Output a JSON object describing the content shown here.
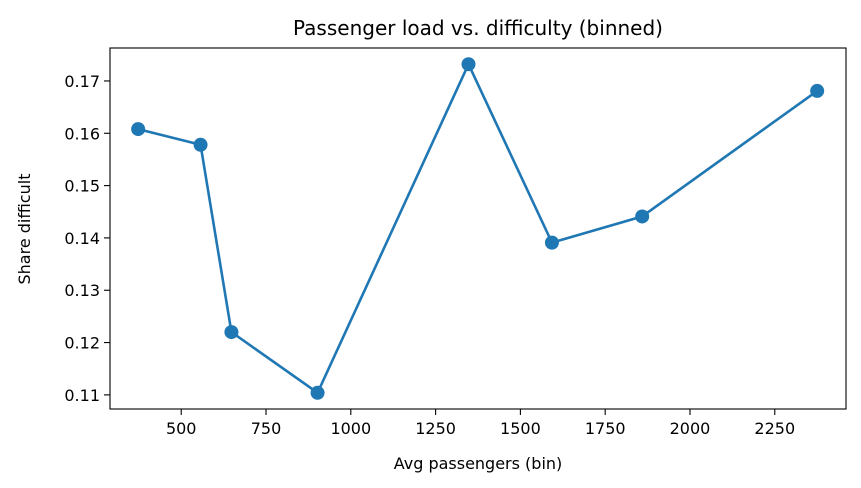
{
  "chart_data": {
    "type": "line",
    "title": "Passenger load vs. difficulty (binned)",
    "xlabel": "Avg passengers (bin)",
    "ylabel": "Share difficult",
    "xlim": [
      290,
      2460
    ],
    "ylim": [
      0.1073,
      0.1763
    ],
    "xticks": [
      500,
      750,
      1000,
      1250,
      1500,
      1750,
      2000,
      2250
    ],
    "xtick_labels": [
      "500",
      "750",
      "1000",
      "1250",
      "1500",
      "1750",
      "2000",
      "2250"
    ],
    "yticks": [
      0.11,
      0.12,
      0.13,
      0.14,
      0.15,
      0.16,
      0.17
    ],
    "ytick_labels": [
      "0.11",
      "0.12",
      "0.13",
      "0.14",
      "0.15",
      "0.16",
      "0.17"
    ],
    "grid": false,
    "marker": "circle",
    "color": "#1f77b4",
    "series": [
      {
        "x": [
          373,
          557,
          648,
          902,
          1347,
          1593,
          1859,
          2375
        ],
        "y": [
          0.1608,
          0.1578,
          0.122,
          0.1104,
          0.1732,
          0.1391,
          0.1441,
          0.1681
        ]
      }
    ]
  }
}
